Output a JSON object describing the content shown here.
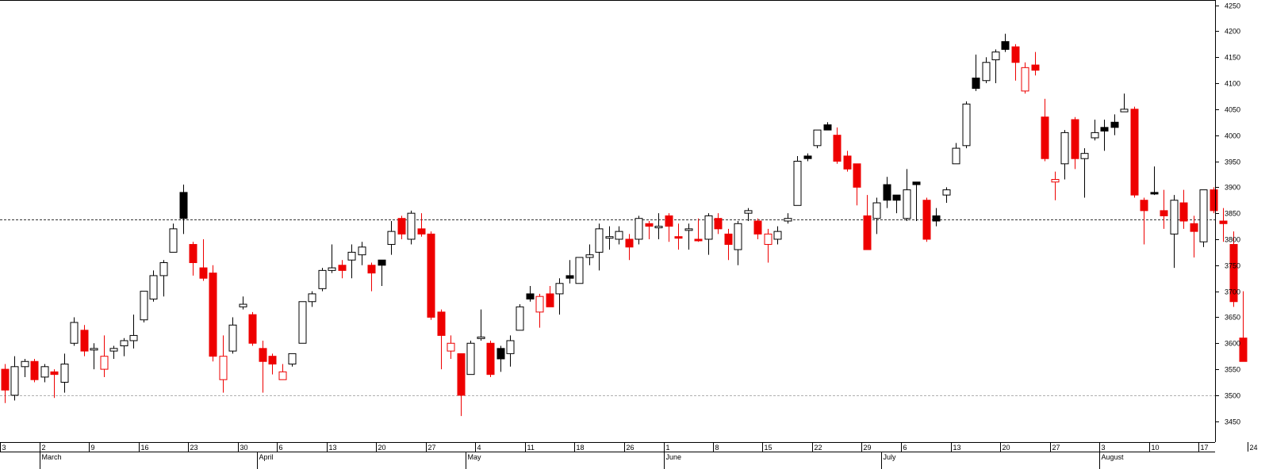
{
  "chart_data": {
    "type": "candlestick",
    "title": "",
    "xlabel": "",
    "ylabel": "",
    "ylim": [
      3410,
      4260
    ],
    "y_ticks": [
      3450,
      3500,
      3550,
      3600,
      3650,
      3700,
      3750,
      3800,
      3850,
      3900,
      3950,
      4000,
      4050,
      4100,
      4150,
      4200,
      4250
    ],
    "grid": false,
    "reference_lines": [
      {
        "value": 3838,
        "style": "dotted",
        "color": "#333333"
      },
      {
        "value": 3500,
        "style": "dotted",
        "color": "#b0b0b0"
      }
    ],
    "x_day_ticks": [
      {
        "label": "3",
        "index": 0
      },
      {
        "label": "2",
        "index": 4
      },
      {
        "label": "9",
        "index": 9
      },
      {
        "label": "16",
        "index": 14
      },
      {
        "label": "23",
        "index": 19
      },
      {
        "label": "30",
        "index": 24
      },
      {
        "label": "6",
        "index": 28
      },
      {
        "label": "13",
        "index": 33
      },
      {
        "label": "20",
        "index": 38
      },
      {
        "label": "27",
        "index": 43
      },
      {
        "label": "4",
        "index": 48
      },
      {
        "label": "11",
        "index": 53
      },
      {
        "label": "18",
        "index": 58
      },
      {
        "label": "26",
        "index": 63
      },
      {
        "label": "1",
        "index": 67
      },
      {
        "label": "8",
        "index": 72
      },
      {
        "label": "15",
        "index": 77
      },
      {
        "label": "22",
        "index": 82
      },
      {
        "label": "29",
        "index": 87
      },
      {
        "label": "6",
        "index": 91
      },
      {
        "label": "13",
        "index": 96
      },
      {
        "label": "20",
        "index": 101
      },
      {
        "label": "27",
        "index": 106
      },
      {
        "label": "3",
        "index": 111
      },
      {
        "label": "10",
        "index": 116
      },
      {
        "label": "17",
        "index": 121
      },
      {
        "label": "24",
        "index": 126
      }
    ],
    "x_month_ticks": [
      {
        "label": "March",
        "index": 4
      },
      {
        "label": "April",
        "index": 26
      },
      {
        "label": "May",
        "index": 47
      },
      {
        "label": "June",
        "index": 67
      },
      {
        "label": "July",
        "index": 89
      },
      {
        "label": "August",
        "index": 111
      }
    ],
    "colors": {
      "down": "#ee0000",
      "up": "#000000",
      "background": "#ffffff",
      "axis": "#000000"
    },
    "candles": [
      {
        "o": 3550,
        "h": 3560,
        "l": 3485,
        "c": 3510,
        "style": "red"
      },
      {
        "o": 3500,
        "h": 3575,
        "l": 3490,
        "c": 3555,
        "style": "hollow"
      },
      {
        "o": 3555,
        "h": 3570,
        "l": 3535,
        "c": 3565,
        "style": "hollow"
      },
      {
        "o": 3565,
        "h": 3570,
        "l": 3525,
        "c": 3530,
        "style": "red"
      },
      {
        "o": 3535,
        "h": 3560,
        "l": 3525,
        "c": 3555,
        "style": "hollow"
      },
      {
        "o": 3545,
        "h": 3550,
        "l": 3495,
        "c": 3540,
        "style": "red"
      },
      {
        "o": 3525,
        "h": 3580,
        "l": 3505,
        "c": 3560,
        "style": "hollow"
      },
      {
        "o": 3600,
        "h": 3650,
        "l": 3595,
        "c": 3640,
        "style": "hollow"
      },
      {
        "o": 3625,
        "h": 3635,
        "l": 3575,
        "c": 3585,
        "style": "red"
      },
      {
        "o": 3590,
        "h": 3600,
        "l": 3550,
        "c": 3590,
        "style": "hollow"
      },
      {
        "o": 3550,
        "h": 3615,
        "l": 3535,
        "c": 3575,
        "style": "hollow-red"
      },
      {
        "o": 3585,
        "h": 3595,
        "l": 3570,
        "c": 3590,
        "style": "hollow"
      },
      {
        "o": 3595,
        "h": 3610,
        "l": 3575,
        "c": 3605,
        "style": "hollow"
      },
      {
        "o": 3605,
        "h": 3655,
        "l": 3590,
        "c": 3615,
        "style": "hollow"
      },
      {
        "o": 3645,
        "h": 3700,
        "l": 3640,
        "c": 3700,
        "style": "hollow"
      },
      {
        "o": 3685,
        "h": 3740,
        "l": 3680,
        "c": 3730,
        "style": "hollow"
      },
      {
        "o": 3730,
        "h": 3760,
        "l": 3690,
        "c": 3755,
        "style": "hollow"
      },
      {
        "o": 3775,
        "h": 3830,
        "l": 3775,
        "c": 3820,
        "style": "hollow"
      },
      {
        "o": 3890,
        "h": 3905,
        "l": 3810,
        "c": 3840,
        "style": "black"
      },
      {
        "o": 3790,
        "h": 3795,
        "l": 3730,
        "c": 3755,
        "style": "red"
      },
      {
        "o": 3745,
        "h": 3800,
        "l": 3720,
        "c": 3725,
        "style": "red"
      },
      {
        "o": 3735,
        "h": 3750,
        "l": 3565,
        "c": 3575,
        "style": "red"
      },
      {
        "o": 3575,
        "h": 3615,
        "l": 3505,
        "c": 3530,
        "style": "hollow-red"
      },
      {
        "o": 3585,
        "h": 3650,
        "l": 3580,
        "c": 3635,
        "style": "hollow"
      },
      {
        "o": 3670,
        "h": 3690,
        "l": 3665,
        "c": 3675,
        "style": "hollow"
      },
      {
        "o": 3655,
        "h": 3660,
        "l": 3595,
        "c": 3600,
        "style": "red"
      },
      {
        "o": 3590,
        "h": 3605,
        "l": 3505,
        "c": 3565,
        "style": "red"
      },
      {
        "o": 3575,
        "h": 3580,
        "l": 3540,
        "c": 3560,
        "style": "red"
      },
      {
        "o": 3545,
        "h": 3560,
        "l": 3530,
        "c": 3530,
        "style": "hollow-red"
      },
      {
        "o": 3560,
        "h": 3580,
        "l": 3555,
        "c": 3580,
        "style": "hollow"
      },
      {
        "o": 3600,
        "h": 3680,
        "l": 3600,
        "c": 3680,
        "style": "hollow"
      },
      {
        "o": 3680,
        "h": 3700,
        "l": 3670,
        "c": 3695,
        "style": "hollow"
      },
      {
        "o": 3705,
        "h": 3745,
        "l": 3700,
        "c": 3740,
        "style": "hollow"
      },
      {
        "o": 3740,
        "h": 3790,
        "l": 3735,
        "c": 3745,
        "style": "hollow"
      },
      {
        "o": 3750,
        "h": 3760,
        "l": 3725,
        "c": 3740,
        "style": "red"
      },
      {
        "o": 3760,
        "h": 3790,
        "l": 3725,
        "c": 3775,
        "style": "hollow"
      },
      {
        "o": 3770,
        "h": 3795,
        "l": 3750,
        "c": 3785,
        "style": "hollow"
      },
      {
        "o": 3750,
        "h": 3755,
        "l": 3700,
        "c": 3735,
        "style": "red"
      },
      {
        "o": 3760,
        "h": 3760,
        "l": 3710,
        "c": 3750,
        "style": "black"
      },
      {
        "o": 3790,
        "h": 3835,
        "l": 3770,
        "c": 3815,
        "style": "hollow"
      },
      {
        "o": 3840,
        "h": 3845,
        "l": 3800,
        "c": 3810,
        "style": "red"
      },
      {
        "o": 3800,
        "h": 3855,
        "l": 3790,
        "c": 3850,
        "style": "hollow"
      },
      {
        "o": 3820,
        "h": 3850,
        "l": 3805,
        "c": 3810,
        "style": "red"
      },
      {
        "o": 3810,
        "h": 3815,
        "l": 3645,
        "c": 3650,
        "style": "red"
      },
      {
        "o": 3660,
        "h": 3665,
        "l": 3550,
        "c": 3615,
        "style": "red"
      },
      {
        "o": 3585,
        "h": 3615,
        "l": 3570,
        "c": 3600,
        "style": "hollow-red"
      },
      {
        "o": 3580,
        "h": 3580,
        "l": 3460,
        "c": 3500,
        "style": "red"
      },
      {
        "o": 3540,
        "h": 3605,
        "l": 3540,
        "c": 3600,
        "style": "hollow"
      },
      {
        "o": 3610,
        "h": 3665,
        "l": 3605,
        "c": 3612,
        "style": "hollow"
      },
      {
        "o": 3600,
        "h": 3605,
        "l": 3535,
        "c": 3540,
        "style": "red"
      },
      {
        "o": 3590,
        "h": 3595,
        "l": 3545,
        "c": 3570,
        "style": "black"
      },
      {
        "o": 3580,
        "h": 3615,
        "l": 3555,
        "c": 3605,
        "style": "hollow"
      },
      {
        "o": 3625,
        "h": 3675,
        "l": 3625,
        "c": 3670,
        "style": "hollow"
      },
      {
        "o": 3695,
        "h": 3710,
        "l": 3680,
        "c": 3685,
        "style": "black"
      },
      {
        "o": 3690,
        "h": 3695,
        "l": 3630,
        "c": 3660,
        "style": "hollow-red"
      },
      {
        "o": 3695,
        "h": 3710,
        "l": 3670,
        "c": 3670,
        "style": "red"
      },
      {
        "o": 3695,
        "h": 3725,
        "l": 3655,
        "c": 3715,
        "style": "hollow"
      },
      {
        "o": 3730,
        "h": 3760,
        "l": 3715,
        "c": 3725,
        "style": "black"
      },
      {
        "o": 3715,
        "h": 3760,
        "l": 3715,
        "c": 3765,
        "style": "hollow"
      },
      {
        "o": 3765,
        "h": 3790,
        "l": 3750,
        "c": 3770,
        "style": "hollow"
      },
      {
        "o": 3775,
        "h": 3830,
        "l": 3740,
        "c": 3820,
        "style": "hollow"
      },
      {
        "o": 3805,
        "h": 3825,
        "l": 3780,
        "c": 3805,
        "style": "hollow"
      },
      {
        "o": 3800,
        "h": 3825,
        "l": 3790,
        "c": 3815,
        "style": "hollow"
      },
      {
        "o": 3800,
        "h": 3810,
        "l": 3760,
        "c": 3785,
        "style": "red"
      },
      {
        "o": 3800,
        "h": 3845,
        "l": 3790,
        "c": 3840,
        "style": "hollow"
      },
      {
        "o": 3830,
        "h": 3835,
        "l": 3800,
        "c": 3825,
        "style": "red"
      },
      {
        "o": 3825,
        "h": 3850,
        "l": 3800,
        "c": 3825,
        "style": "hollow"
      },
      {
        "o": 3845,
        "h": 3850,
        "l": 3795,
        "c": 3825,
        "style": "red"
      },
      {
        "o": 3805,
        "h": 3830,
        "l": 3780,
        "c": 3805,
        "style": "red"
      },
      {
        "o": 3820,
        "h": 3830,
        "l": 3780,
        "c": 3820,
        "style": "hollow"
      },
      {
        "o": 3800,
        "h": 3840,
        "l": 3795,
        "c": 3800,
        "style": "red"
      },
      {
        "o": 3800,
        "h": 3850,
        "l": 3770,
        "c": 3845,
        "style": "hollow"
      },
      {
        "o": 3840,
        "h": 3850,
        "l": 3810,
        "c": 3820,
        "style": "red"
      },
      {
        "o": 3810,
        "h": 3820,
        "l": 3760,
        "c": 3790,
        "style": "red"
      },
      {
        "o": 3780,
        "h": 3835,
        "l": 3750,
        "c": 3830,
        "style": "hollow"
      },
      {
        "o": 3850,
        "h": 3860,
        "l": 3835,
        "c": 3855,
        "style": "hollow"
      },
      {
        "o": 3835,
        "h": 3840,
        "l": 3800,
        "c": 3810,
        "style": "red"
      },
      {
        "o": 3810,
        "h": 3820,
        "l": 3755,
        "c": 3790,
        "style": "hollow-red"
      },
      {
        "o": 3800,
        "h": 3825,
        "l": 3790,
        "c": 3815,
        "style": "hollow"
      },
      {
        "o": 3835,
        "h": 3850,
        "l": 3830,
        "c": 3840,
        "style": "hollow"
      },
      {
        "o": 3865,
        "h": 3960,
        "l": 3865,
        "c": 3950,
        "style": "hollow"
      },
      {
        "o": 3960,
        "h": 3965,
        "l": 3950,
        "c": 3955,
        "style": "black"
      },
      {
        "o": 3980,
        "h": 4010,
        "l": 3975,
        "c": 4010,
        "style": "hollow"
      },
      {
        "o": 4020,
        "h": 4025,
        "l": 4010,
        "c": 4010,
        "style": "black"
      },
      {
        "o": 4000,
        "h": 4015,
        "l": 3945,
        "c": 3950,
        "style": "red"
      },
      {
        "o": 3960,
        "h": 3970,
        "l": 3930,
        "c": 3935,
        "style": "red"
      },
      {
        "o": 3945,
        "h": 3945,
        "l": 3865,
        "c": 3900,
        "style": "red"
      },
      {
        "o": 3845,
        "h": 3885,
        "l": 3780,
        "c": 3780,
        "style": "red"
      },
      {
        "o": 3840,
        "h": 3880,
        "l": 3810,
        "c": 3870,
        "style": "hollow"
      },
      {
        "o": 3905,
        "h": 3920,
        "l": 3860,
        "c": 3875,
        "style": "black"
      },
      {
        "o": 3885,
        "h": 3885,
        "l": 3850,
        "c": 3875,
        "style": "black"
      },
      {
        "o": 3840,
        "h": 3935,
        "l": 3835,
        "c": 3895,
        "style": "hollow"
      },
      {
        "o": 3910,
        "h": 3910,
        "l": 3835,
        "c": 3905,
        "style": "black"
      },
      {
        "o": 3875,
        "h": 3880,
        "l": 3795,
        "c": 3800,
        "style": "red"
      },
      {
        "o": 3845,
        "h": 3860,
        "l": 3825,
        "c": 3835,
        "style": "black"
      },
      {
        "o": 3885,
        "h": 3900,
        "l": 3870,
        "c": 3895,
        "style": "hollow"
      },
      {
        "o": 3945,
        "h": 3985,
        "l": 3945,
        "c": 3975,
        "style": "hollow"
      },
      {
        "o": 3980,
        "h": 4065,
        "l": 3975,
        "c": 4060,
        "style": "hollow"
      },
      {
        "o": 4110,
        "h": 4155,
        "l": 4085,
        "c": 4090,
        "style": "black"
      },
      {
        "o": 4105,
        "h": 4150,
        "l": 4100,
        "c": 4140,
        "style": "hollow"
      },
      {
        "o": 4145,
        "h": 4165,
        "l": 4100,
        "c": 4160,
        "style": "hollow"
      },
      {
        "o": 4180,
        "h": 4195,
        "l": 4160,
        "c": 4165,
        "style": "black"
      },
      {
        "o": 4170,
        "h": 4175,
        "l": 4105,
        "c": 4140,
        "style": "red"
      },
      {
        "o": 4085,
        "h": 4140,
        "l": 4080,
        "c": 4130,
        "style": "hollow-red"
      },
      {
        "o": 4135,
        "h": 4160,
        "l": 4115,
        "c": 4125,
        "style": "red"
      },
      {
        "o": 4035,
        "h": 4070,
        "l": 3950,
        "c": 3955,
        "style": "red"
      },
      {
        "o": 3910,
        "h": 3930,
        "l": 3875,
        "c": 3915,
        "style": "hollow-red"
      },
      {
        "o": 3945,
        "h": 4010,
        "l": 3915,
        "c": 4005,
        "style": "hollow"
      },
      {
        "o": 4030,
        "h": 4035,
        "l": 3935,
        "c": 3955,
        "style": "red"
      },
      {
        "o": 3955,
        "h": 3975,
        "l": 3880,
        "c": 3965,
        "style": "hollow"
      },
      {
        "o": 3995,
        "h": 4030,
        "l": 3990,
        "c": 4005,
        "style": "hollow"
      },
      {
        "o": 4015,
        "h": 4030,
        "l": 3970,
        "c": 4008,
        "style": "black"
      },
      {
        "o": 4025,
        "h": 4040,
        "l": 4000,
        "c": 4015,
        "style": "black"
      },
      {
        "o": 4045,
        "h": 4080,
        "l": 4045,
        "c": 4050,
        "style": "hollow"
      },
      {
        "o": 4050,
        "h": 4055,
        "l": 3880,
        "c": 3885,
        "style": "red"
      },
      {
        "o": 3875,
        "h": 3880,
        "l": 3790,
        "c": 3855,
        "style": "red"
      },
      {
        "o": 3890,
        "h": 3940,
        "l": 3885,
        "c": 3890,
        "style": "black"
      },
      {
        "o": 3855,
        "h": 3895,
        "l": 3820,
        "c": 3845,
        "style": "red"
      },
      {
        "o": 3810,
        "h": 3885,
        "l": 3745,
        "c": 3875,
        "style": "hollow"
      },
      {
        "o": 3870,
        "h": 3895,
        "l": 3820,
        "c": 3835,
        "style": "red"
      },
      {
        "o": 3830,
        "h": 3845,
        "l": 3765,
        "c": 3815,
        "style": "red"
      },
      {
        "o": 3795,
        "h": 3895,
        "l": 3785,
        "c": 3895,
        "style": "hollow"
      },
      {
        "o": 3895,
        "h": 3900,
        "l": 3850,
        "c": 3855,
        "style": "red"
      },
      {
        "o": 3835,
        "h": 3860,
        "l": 3795,
        "c": 3830,
        "style": "red"
      },
      {
        "o": 3790,
        "h": 3815,
        "l": 3670,
        "c": 3680,
        "style": "red"
      },
      {
        "o": 3610,
        "h": 3700,
        "l": 3565,
        "c": 3565,
        "style": "red"
      }
    ]
  }
}
